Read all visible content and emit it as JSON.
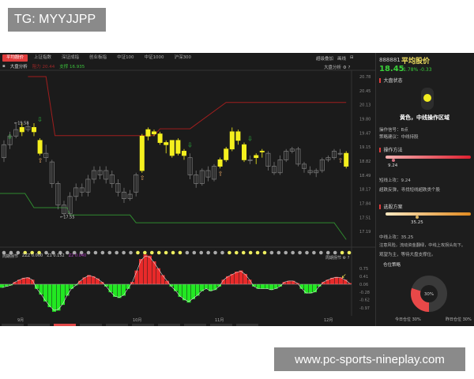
{
  "watermarks": {
    "top": "TG: MYYJJPP",
    "bottom": "www.pc-sports-nineplay.com"
  },
  "tabs": [
    "平均股价",
    "上证指数",
    "深证成指",
    "创业板指",
    "中证100",
    "中证1000",
    "沪深300"
  ],
  "active_tab": 0,
  "subheader": {
    "label": "大盘分析",
    "resist": "阻力 20.44",
    "support": "支撑 16.935"
  },
  "toolbar": {
    "overlay": "超级叠加",
    "mode": "画线",
    "analysis": "大盘分析"
  },
  "colors": {
    "up": "#e82a2a",
    "down": "#22e822",
    "signal": "#f5f01e",
    "hollow": "#777777",
    "resist_line": "#a01e1e",
    "support_line": "#2f8a2f"
  },
  "price_axis": [
    "20.78",
    "20.45",
    "20.13",
    "19.80",
    "19.47",
    "19.15",
    "18.82",
    "18.49",
    "18.17",
    "17.84",
    "17.51",
    "17.19"
  ],
  "annotations": {
    "high": "19.58",
    "low": "17.55"
  },
  "candles": [
    [
      18.9,
      19.2,
      19.3,
      18.8,
      0
    ],
    [
      19.2,
      19.4,
      19.5,
      19.1,
      0
    ],
    [
      19.4,
      19.55,
      19.7,
      19.35,
      0
    ],
    [
      19.5,
      19.6,
      19.7,
      19.4,
      1
    ],
    [
      19.55,
      19.62,
      19.72,
      19.5,
      0
    ],
    [
      19.6,
      19.5,
      19.7,
      19.4,
      1
    ],
    [
      19.3,
      19.0,
      19.35,
      18.95,
      1
    ],
    [
      19.0,
      18.9,
      19.2,
      18.8,
      0
    ],
    [
      18.8,
      18.3,
      18.85,
      18.2,
      0
    ],
    [
      18.3,
      17.8,
      18.35,
      17.7,
      0
    ],
    [
      17.8,
      17.6,
      17.9,
      17.55,
      0
    ],
    [
      17.6,
      18.0,
      18.1,
      17.55,
      0
    ],
    [
      18.0,
      18.2,
      18.3,
      17.9,
      0
    ],
    [
      18.2,
      18.1,
      18.3,
      18.0,
      0
    ],
    [
      18.1,
      18.4,
      18.5,
      18.0,
      0
    ],
    [
      18.4,
      18.6,
      18.7,
      18.3,
      0
    ],
    [
      18.6,
      18.5,
      18.7,
      18.4,
      0
    ],
    [
      18.4,
      18.6,
      18.7,
      18.3,
      0
    ],
    [
      18.5,
      18.3,
      18.6,
      18.2,
      0
    ],
    [
      18.3,
      18.1,
      18.4,
      18.0,
      0
    ],
    [
      18.1,
      17.95,
      18.2,
      17.85,
      0
    ],
    [
      17.95,
      18.05,
      18.15,
      17.9,
      0
    ],
    [
      18.1,
      18.5,
      18.55,
      18.0,
      0
    ],
    [
      18.6,
      19.4,
      19.45,
      18.55,
      1
    ],
    [
      19.4,
      19.55,
      19.6,
      19.3,
      1
    ],
    [
      19.5,
      19.45,
      19.55,
      19.4,
      1
    ],
    [
      19.45,
      19.25,
      19.5,
      19.2,
      1
    ],
    [
      19.2,
      19.25,
      19.3,
      19.0,
      1
    ],
    [
      19.3,
      18.95,
      19.3,
      18.9,
      1
    ],
    [
      19.3,
      19.0,
      19.35,
      18.95,
      1
    ],
    [
      18.95,
      19.05,
      19.1,
      18.85,
      1
    ],
    [
      18.9,
      18.5,
      19.0,
      18.4,
      0
    ],
    [
      18.5,
      18.3,
      18.6,
      18.2,
      0
    ],
    [
      18.3,
      18.6,
      18.65,
      18.25,
      0
    ],
    [
      18.6,
      18.45,
      18.7,
      18.35,
      0
    ],
    [
      18.4,
      18.7,
      18.75,
      18.35,
      0
    ],
    [
      18.7,
      18.85,
      18.9,
      18.65,
      1
    ],
    [
      18.85,
      19.1,
      19.15,
      18.8,
      1
    ],
    [
      19.1,
      19.5,
      19.6,
      19.05,
      1
    ],
    [
      19.5,
      19.3,
      19.55,
      19.2,
      1
    ],
    [
      19.2,
      18.85,
      19.25,
      18.8,
      1
    ],
    [
      18.85,
      18.85,
      18.95,
      18.75,
      0
    ],
    [
      18.9,
      18.95,
      19.0,
      18.75,
      1
    ],
    [
      19.05,
      19.05,
      19.1,
      18.9,
      1
    ],
    [
      19.0,
      18.7,
      19.05,
      18.6,
      0
    ],
    [
      18.7,
      18.55,
      18.8,
      18.5,
      0
    ],
    [
      18.55,
      18.85,
      18.95,
      18.5,
      0
    ],
    [
      18.85,
      19.05,
      19.1,
      18.8,
      0
    ],
    [
      19.05,
      19.1,
      19.15,
      19.0,
      0
    ],
    [
      19.1,
      18.75,
      19.15,
      18.7,
      0
    ],
    [
      18.75,
      18.65,
      18.8,
      18.55,
      0
    ],
    [
      18.6,
      18.55,
      18.7,
      18.5,
      0
    ],
    [
      18.55,
      18.6,
      18.65,
      18.45,
      0
    ],
    [
      18.6,
      18.85,
      18.9,
      18.55,
      0
    ],
    [
      18.85,
      18.9,
      18.95,
      18.8,
      0
    ],
    [
      18.9,
      19.05,
      19.1,
      18.85,
      0
    ],
    [
      19.0,
      19.0,
      19.1,
      18.95,
      0
    ],
    [
      19.0,
      18.7,
      19.05,
      18.65,
      1
    ]
  ],
  "buy_signals": [
    6,
    23,
    36,
    56
  ],
  "sell_signals": [
    0,
    5,
    30,
    40
  ],
  "resist_line": [
    [
      4,
      20.78
    ],
    [
      7,
      20.78
    ],
    [
      8.5,
      19.41
    ],
    [
      25,
      19.41
    ],
    [
      26,
      19.57
    ],
    [
      31,
      19.57
    ],
    [
      37,
      20.18
    ],
    [
      57,
      20.18
    ]
  ],
  "support_line": [
    [
      -1,
      18.07
    ],
    [
      3.5,
      18.07
    ],
    [
      5,
      17.74
    ],
    [
      10.5,
      17.74
    ],
    [
      11,
      17.57
    ],
    [
      21,
      17.57
    ],
    [
      22,
      17.39
    ],
    [
      55,
      17.39
    ],
    [
      57,
      17.0
    ]
  ],
  "signal_dots": [
    0,
    0,
    0,
    1,
    1,
    1,
    0,
    0,
    0,
    0,
    0,
    0,
    0,
    0,
    0,
    0,
    0,
    0,
    0,
    1,
    1,
    1,
    1,
    1,
    1,
    1,
    0,
    0,
    0,
    0,
    0,
    0,
    1,
    1,
    1,
    1,
    1,
    1,
    0,
    0,
    0,
    0,
    0,
    0,
    0,
    0,
    0,
    0,
    1,
    1
  ],
  "indicator": {
    "label": "周期拐节",
    "zzz": "ZZZ 0.000",
    "z1": "Z1 0.152",
    "z2": "Z2 0.040",
    "right_label": "周期拐节",
    "axis": [
      "0.75",
      "0.41",
      "0.06",
      "-0.28",
      "-0.62",
      "-0.97"
    ],
    "histogram": [
      -0.15,
      -0.1,
      -0.05,
      0.1,
      0.2,
      0.28,
      0.3,
      0.2,
      -0.2,
      -0.45,
      -0.75,
      -1.0,
      -1.2,
      -1.15,
      -0.9,
      -0.5,
      -0.2,
      -0.05,
      0.15,
      0.3,
      0.4,
      0.35,
      0.25,
      0.1,
      -0.1,
      -0.35,
      -0.55,
      -0.6,
      -0.5,
      -0.2,
      0.1,
      0.6,
      1.1,
      1.3,
      1.25,
      1.0,
      0.7,
      0.4,
      0.15,
      -0.1,
      -0.3,
      -0.55,
      -0.7,
      -0.8,
      -0.65,
      -0.5,
      -0.3,
      -0.2,
      -0.3,
      -0.25,
      -0.1,
      0.2,
      0.35,
      0.45,
      0.55,
      0.6,
      0.45,
      0.2,
      -0.1,
      -0.2,
      -0.2,
      -0.2,
      -0.25,
      -0.2,
      -0.1,
      0.1,
      0.15,
      0.15,
      0.05,
      -0.2,
      -0.4,
      -0.4,
      -0.35,
      -0.1,
      0.1,
      0.2,
      0.28,
      0.32,
      0.3,
      0.2,
      0.05
    ]
  },
  "months": [
    "9月",
    "10月",
    "11月",
    "12月"
  ],
  "right": {
    "code": "888881",
    "name": "平均股价",
    "price": "18.45",
    "pct": "-1.78%",
    "chg": "-0.33",
    "state_title": "大盘状态",
    "light": "yellow",
    "state_text": "黄色，中线操作区域",
    "signal": "操作信号：B点",
    "advice": "策略建议：中线持股",
    "method_title": "操作方法",
    "method_value": "9.24",
    "method_line1": "短线上攻：9.24",
    "method_line2": "超跌反弹，寻找短线超跌类个股",
    "pick_title": "选股方案",
    "pick_value": "35.25",
    "pick_line1": "中线上攻：35.25",
    "pick_line2": "注意风险，流动资金翻绿，中线上攻拐头向下。",
    "pick_line3": "观望为主，等待大盘支撑位。",
    "position_title": "仓位策略",
    "position_pct": 30,
    "position_label": "30%",
    "today": "今日仓位",
    "today_val": "30%",
    "yesterday": "昨日仓位",
    "yesterday_val": "30%"
  }
}
